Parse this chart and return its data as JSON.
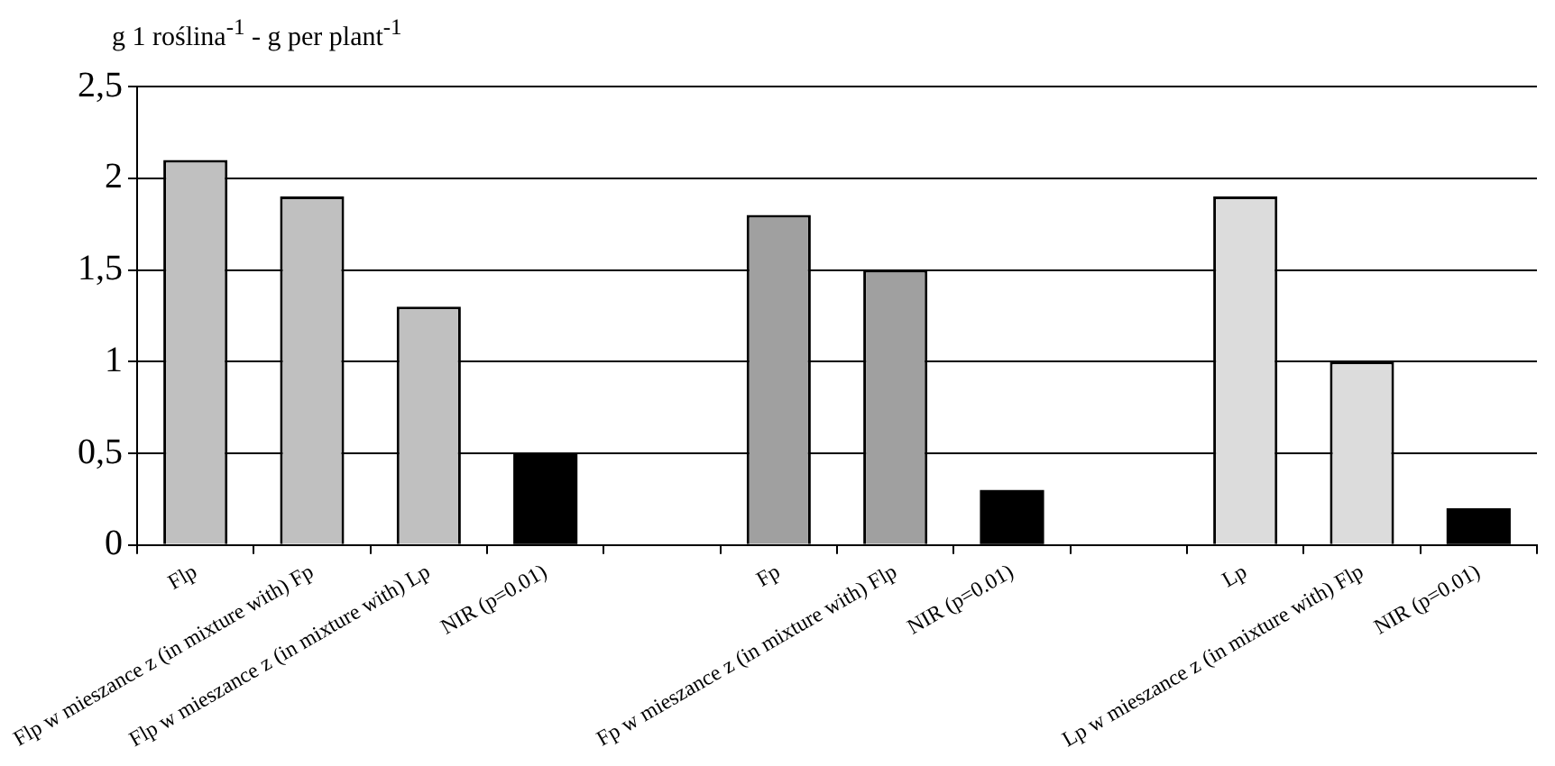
{
  "chart_data": {
    "type": "bar",
    "ylabel": "g 1 roślina$^{-1}$ - g per plant$^{-1}$",
    "categories": [
      "Flp",
      "Flp w mieszance z (in mixture with) Fp",
      "Flp w mieszance z (in mixture with) Lp",
      "NIR (p=0.01)",
      null,
      "Fp",
      "Fp w mieszance z (in mixture with) Flp",
      "NIR (p=0.01)",
      null,
      "Lp",
      "Lp w mieszance z (in mixture with) Flp",
      "NIR (p=0.01)"
    ],
    "values": [
      2.1,
      1.9,
      1.3,
      0.5,
      null,
      1.8,
      1.5,
      0.3,
      null,
      1.9,
      1.0,
      0.2
    ],
    "colors": [
      "#c0c0c0",
      "#c0c0c0",
      "#c0c0c0",
      "#000000",
      "#ffffff",
      "#a0a0a0",
      "#a0a0a0",
      "#000000",
      "#ffffff",
      "#dcdcdc",
      "#dcdcdc",
      "#000000"
    ],
    "ylim": [
      0,
      2.5
    ],
    "yticks": [
      {
        "value": 0,
        "label": "0"
      },
      {
        "value": 0.5,
        "label": "0,5"
      },
      {
        "value": 1,
        "label": "1"
      },
      {
        "value": 1.5,
        "label": "1,5"
      },
      {
        "value": 2,
        "label": "2"
      },
      {
        "value": 2.5,
        "label": "2,5"
      }
    ],
    "grid": "y",
    "legend": false
  }
}
